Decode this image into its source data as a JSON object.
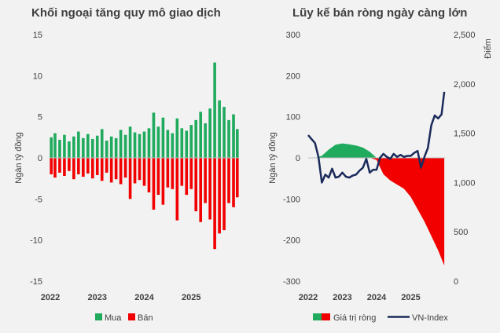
{
  "chart_data": [
    {
      "type": "bar",
      "title": "Khối ngoại tăng quy mô giao dịch",
      "xlabel": "",
      "ylabel": "Ngàn tỷ đồng",
      "ylim": [
        -15,
        15
      ],
      "yticks": [
        "15",
        "10",
        "5",
        "0",
        "-5",
        "-10",
        "-15"
      ],
      "xticks": [
        "2022",
        "2023",
        "2024",
        "2025"
      ],
      "x_range": [
        2022.0,
        2026.0
      ],
      "grid": false,
      "legend_position": "bottom",
      "series": [
        {
          "name": "Mua",
          "color": "#1faa5e",
          "x": [
            2022.02,
            2022.1,
            2022.2,
            2022.3,
            2022.4,
            2022.5,
            2022.6,
            2022.7,
            2022.8,
            2022.9,
            2023.0,
            2023.1,
            2023.2,
            2023.3,
            2023.4,
            2023.5,
            2023.6,
            2023.7,
            2023.8,
            2023.9,
            2024.0,
            2024.1,
            2024.2,
            2024.3,
            2024.4,
            2024.5,
            2024.6,
            2024.7,
            2024.8,
            2024.9,
            2025.0,
            2025.1,
            2025.2,
            2025.3,
            2025.4,
            2025.5,
            2025.6,
            2025.7,
            2025.8,
            2025.9,
            2025.98
          ],
          "values": [
            2.5,
            3.0,
            2.2,
            2.8,
            2.0,
            2.6,
            3.2,
            2.4,
            2.9,
            2.3,
            2.7,
            3.5,
            2.1,
            2.6,
            2.4,
            3.4,
            2.8,
            3.8,
            3.1,
            2.9,
            3.2,
            3.6,
            5.5,
            3.8,
            4.9,
            3.4,
            3.0,
            4.8,
            3.6,
            3.3,
            4.0,
            4.6,
            5.6,
            4.2,
            6.0,
            11.6,
            7.0,
            6.2,
            4.6,
            5.3,
            3.5
          ]
        },
        {
          "name": "Bán",
          "color": "#f20000",
          "x": [
            2022.02,
            2022.1,
            2022.2,
            2022.3,
            2022.4,
            2022.5,
            2022.6,
            2022.7,
            2022.8,
            2022.9,
            2023.0,
            2023.1,
            2023.2,
            2023.3,
            2023.4,
            2023.5,
            2023.6,
            2023.7,
            2023.8,
            2023.9,
            2024.0,
            2024.1,
            2024.2,
            2024.3,
            2024.4,
            2024.5,
            2024.6,
            2024.7,
            2024.8,
            2024.9,
            2025.0,
            2025.1,
            2025.2,
            2025.3,
            2025.4,
            2025.5,
            2025.6,
            2025.7,
            2025.8,
            2025.9,
            2025.98
          ],
          "values": [
            -2.0,
            -2.4,
            -1.8,
            -2.2,
            -1.6,
            -2.6,
            -2.0,
            -2.3,
            -1.9,
            -2.5,
            -2.1,
            -2.8,
            -1.8,
            -3.0,
            -2.6,
            -3.2,
            -2.4,
            -5.0,
            -3.1,
            -2.7,
            -3.4,
            -4.2,
            -6.3,
            -4.5,
            -5.7,
            -3.6,
            -3.8,
            -7.6,
            -3.4,
            -4.5,
            -3.8,
            -6.5,
            -7.8,
            -5.5,
            -7.5,
            -11.1,
            -9.2,
            -8.8,
            -5.5,
            -6.0,
            -4.8
          ]
        }
      ]
    },
    {
      "type": "area",
      "title": "Lũy kế bán ròng ngày càng lớn",
      "xlabel": "",
      "ylabel": "Ngàn tỷ đồng",
      "ylabel_right": "Điểm",
      "ylim": [
        -300,
        300
      ],
      "ylim_right": [
        0,
        2500
      ],
      "yticks": [
        "300",
        "200",
        "100",
        "0",
        "-100",
        "-200",
        "-300"
      ],
      "yticks_right": [
        "2,500",
        "2,000",
        "1,500",
        "1,000",
        "500",
        "0"
      ],
      "xticks": [
        "2022",
        "2023",
        "2024",
        "2025"
      ],
      "x_range": [
        2022.0,
        2026.0
      ],
      "grid": false,
      "legend_position": "bottom",
      "series": [
        {
          "name": "Giá trị ròng",
          "type": "area",
          "color_positive": "#1faa5e",
          "color_negative": "#f20000",
          "x": [
            2022.0,
            2022.2,
            2022.4,
            2022.6,
            2022.8,
            2023.0,
            2023.2,
            2023.4,
            2023.6,
            2023.8,
            2024.0,
            2024.2,
            2024.4,
            2024.6,
            2024.8,
            2025.0,
            2025.2,
            2025.4,
            2025.6,
            2025.8,
            2025.98
          ],
          "values": [
            0,
            0,
            5,
            20,
            32,
            35,
            33,
            30,
            25,
            15,
            -5,
            -40,
            -55,
            -65,
            -75,
            -95,
            -125,
            -155,
            -190,
            -225,
            -262
          ]
        },
        {
          "name": "VN-Index",
          "type": "line",
          "axis": "right",
          "color": "#1a2a5a",
          "x": [
            2022.0,
            2022.1,
            2022.2,
            2022.3,
            2022.4,
            2022.5,
            2022.6,
            2022.7,
            2022.8,
            2022.9,
            2023.0,
            2023.1,
            2023.2,
            2023.3,
            2023.4,
            2023.5,
            2023.6,
            2023.7,
            2023.8,
            2023.9,
            2024.0,
            2024.1,
            2024.2,
            2024.3,
            2024.4,
            2024.5,
            2024.6,
            2024.7,
            2024.8,
            2024.9,
            2025.0,
            2025.1,
            2025.2,
            2025.3,
            2025.4,
            2025.5,
            2025.6,
            2025.7,
            2025.8,
            2025.9,
            2025.98
          ],
          "values": [
            1480,
            1440,
            1400,
            1260,
            1000,
            1080,
            1050,
            1140,
            1050,
            1060,
            1100,
            1060,
            1050,
            1070,
            1080,
            1120,
            1150,
            1240,
            1100,
            1130,
            1130,
            1250,
            1290,
            1260,
            1240,
            1290,
            1260,
            1280,
            1260,
            1270,
            1270,
            1300,
            1320,
            1150,
            1260,
            1350,
            1580,
            1680,
            1650,
            1690,
            1920
          ]
        }
      ]
    }
  ]
}
